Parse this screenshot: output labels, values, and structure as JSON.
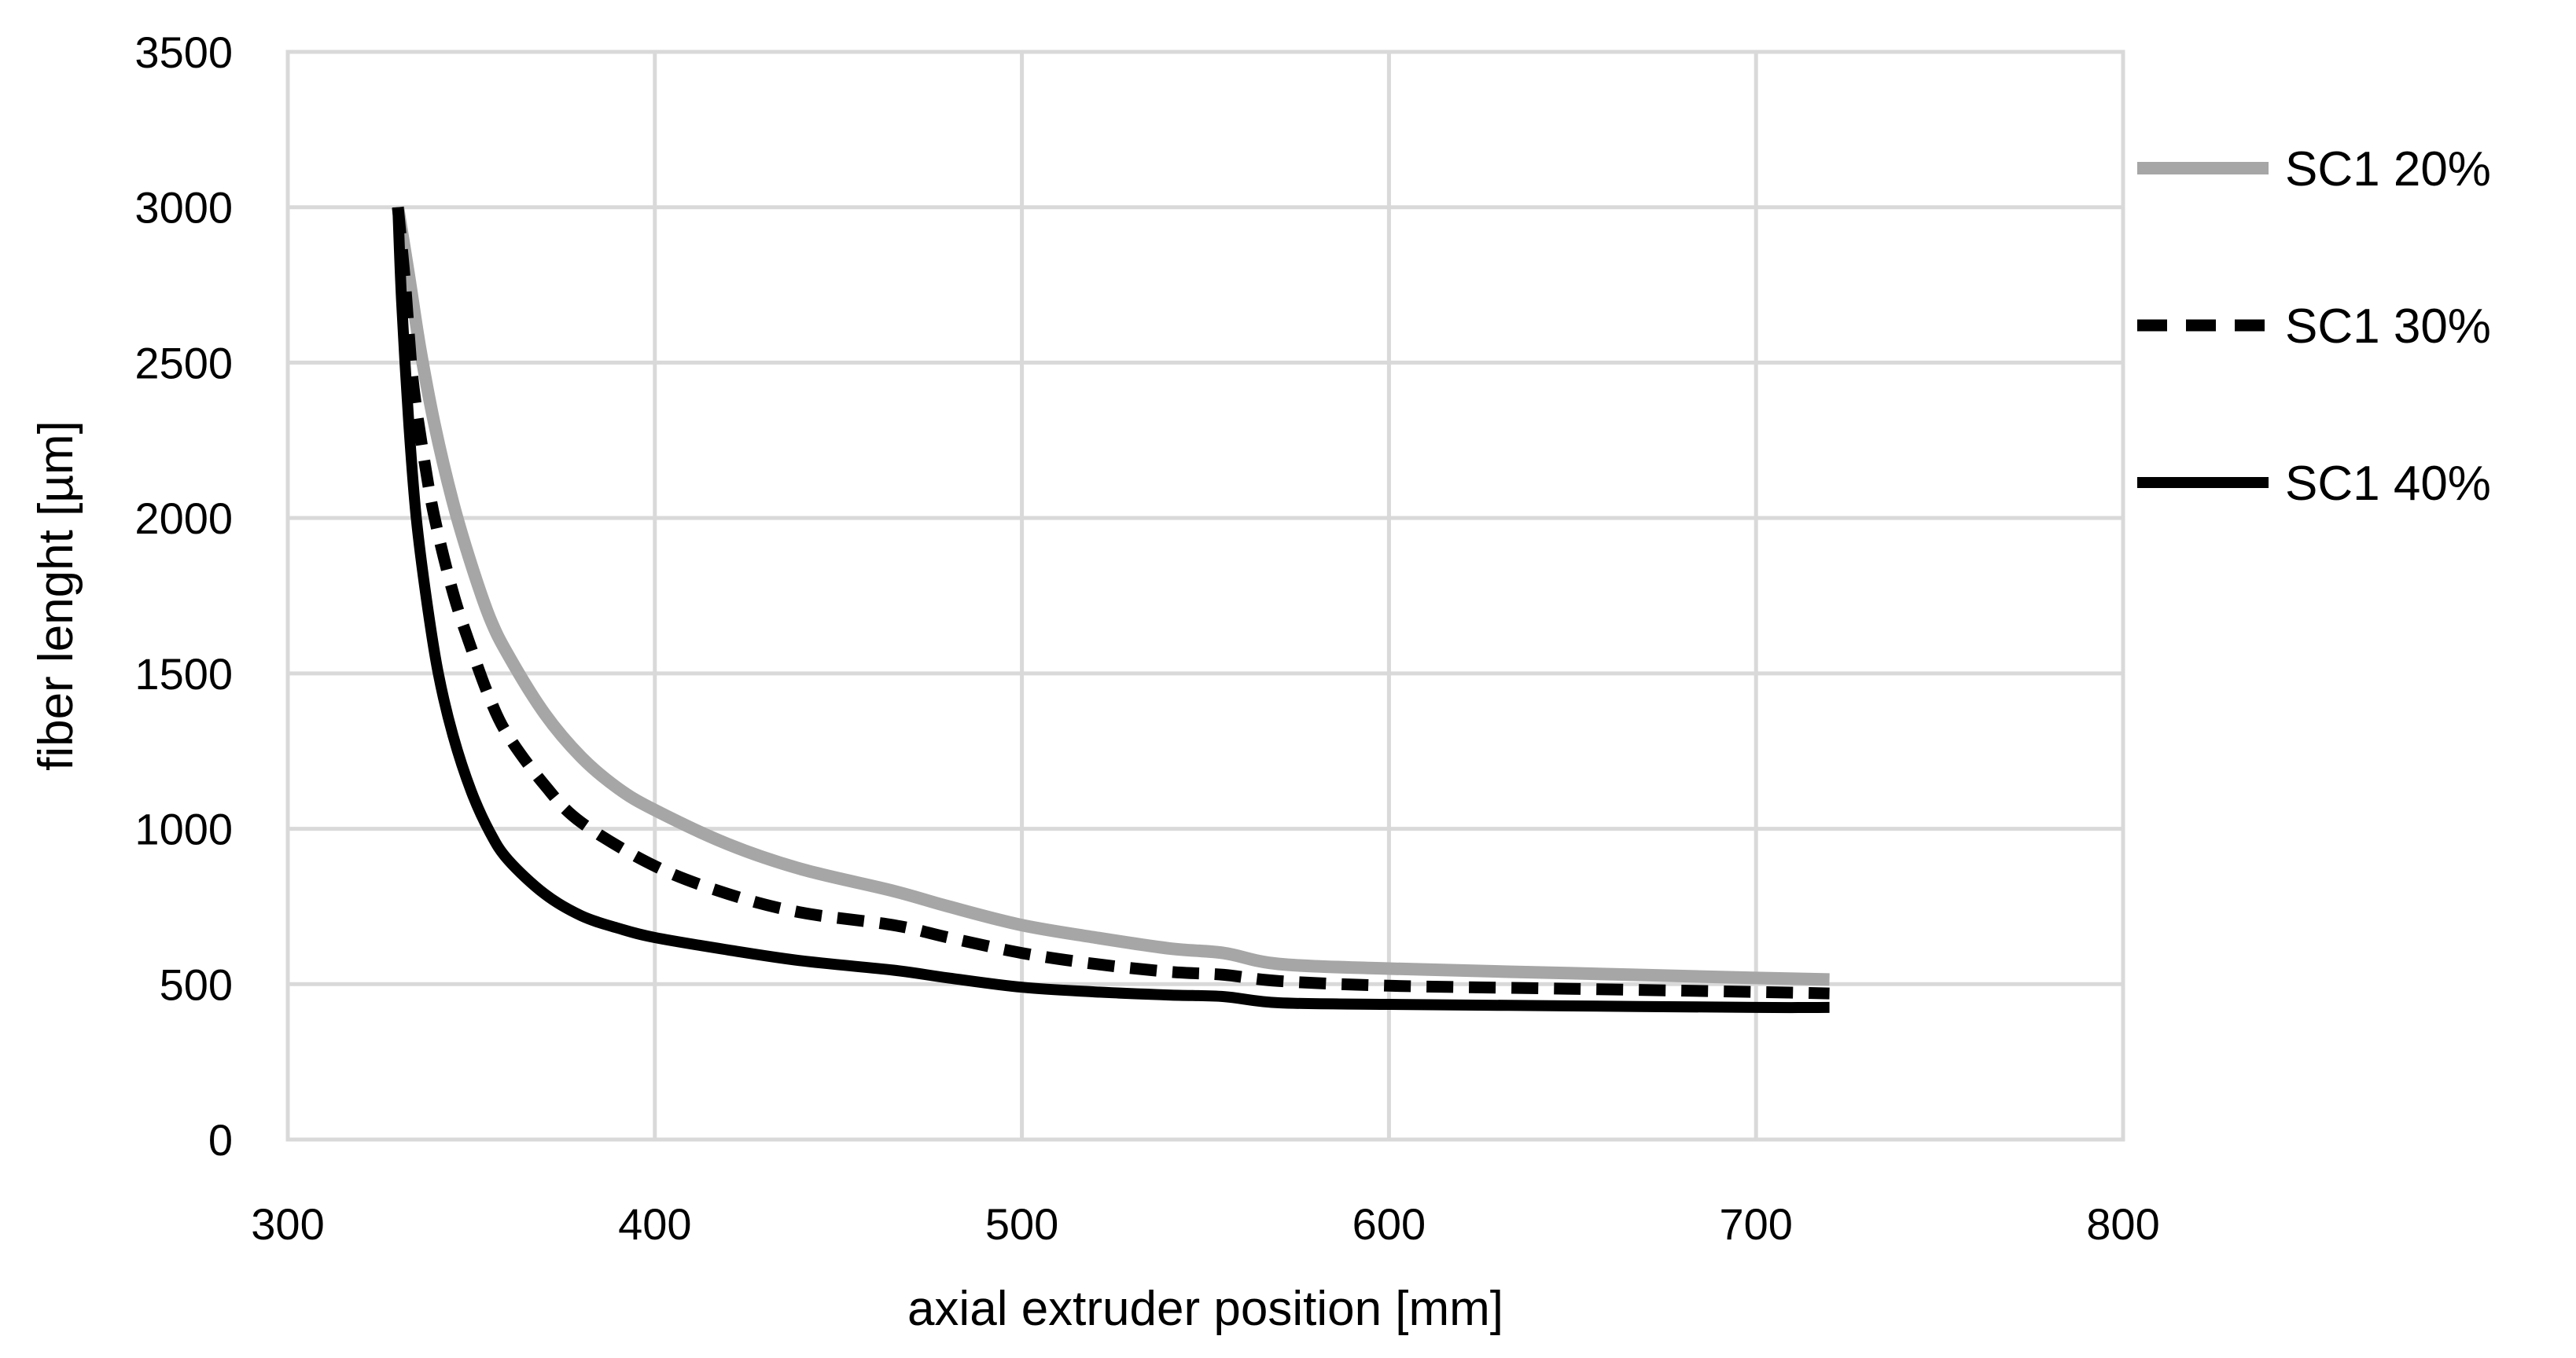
{
  "chart_data": {
    "type": "line",
    "title": "",
    "xlabel": "axial extruder position [mm]",
    "ylabel": "fiber lenght [µm]",
    "xlim": [
      300,
      800
    ],
    "ylim": [
      0,
      3500
    ],
    "xticks": [
      300,
      400,
      500,
      600,
      700,
      800
    ],
    "yticks": [
      0,
      500,
      1000,
      1500,
      2000,
      2500,
      3000,
      3500
    ],
    "grid": true,
    "legend_position": "right",
    "series": [
      {
        "name": "SC1 20%",
        "color": "#a6a6a6",
        "style": "solid",
        "x": [
          330,
          333,
          336,
          340,
          345,
          350,
          355,
          360,
          370,
          380,
          390,
          400,
          420,
          440,
          465,
          480,
          500,
          520,
          540,
          555,
          570,
          600,
          650,
          700,
          720
        ],
        "y": [
          3000,
          2780,
          2550,
          2300,
          2050,
          1850,
          1680,
          1560,
          1370,
          1230,
          1130,
          1060,
          950,
          870,
          800,
          750,
          690,
          650,
          615,
          600,
          565,
          550,
          535,
          520,
          515
        ]
      },
      {
        "name": "SC1 30%",
        "color": "#000000",
        "style": "dashed",
        "x": [
          330,
          332,
          334,
          337,
          340,
          345,
          350,
          355,
          360,
          370,
          380,
          400,
          420,
          440,
          465,
          480,
          500,
          520,
          540,
          555,
          570,
          600,
          650,
          700,
          720
        ],
        "y": [
          3000,
          2750,
          2450,
          2200,
          2000,
          1760,
          1580,
          1420,
          1300,
          1140,
          1020,
          880,
          790,
          730,
          690,
          650,
          600,
          565,
          540,
          530,
          510,
          495,
          485,
          475,
          470
        ]
      },
      {
        "name": "SC1 40%",
        "color": "#000000",
        "style": "solid",
        "x": [
          330,
          331,
          333,
          335,
          338,
          341,
          345,
          350,
          355,
          360,
          370,
          380,
          390,
          400,
          420,
          440,
          465,
          480,
          500,
          520,
          540,
          555,
          570,
          600,
          650,
          700,
          720
        ],
        "y": [
          3000,
          2700,
          2300,
          2000,
          1720,
          1500,
          1300,
          1120,
          990,
          900,
          790,
          720,
          680,
          650,
          610,
          575,
          545,
          520,
          490,
          475,
          465,
          460,
          440,
          435,
          430,
          425,
          425
        ]
      }
    ]
  }
}
